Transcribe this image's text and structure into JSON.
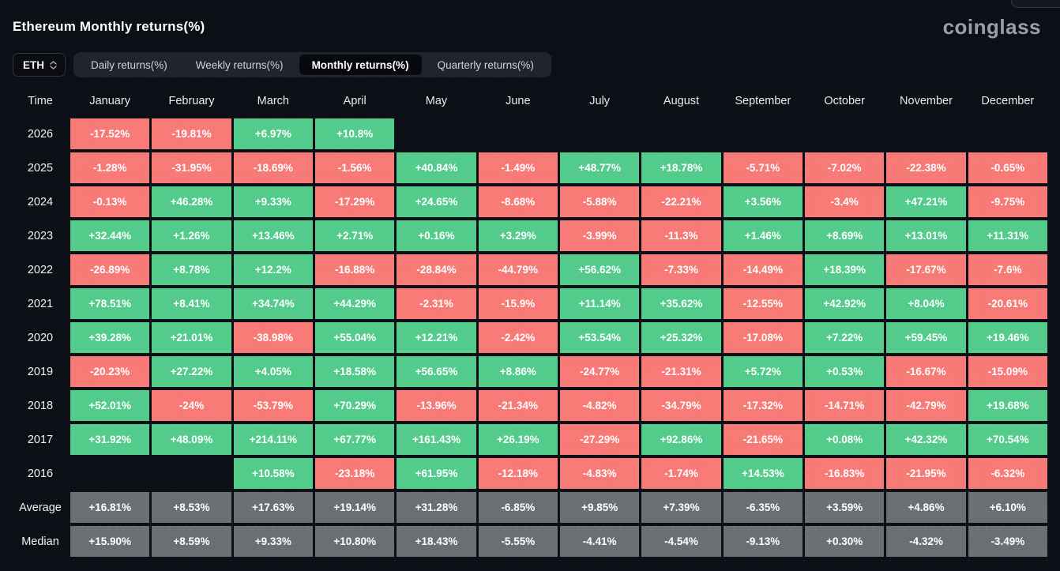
{
  "header": {
    "title": "Ethereum Monthly returns(%)",
    "logo_text": "coinglass"
  },
  "controls": {
    "symbol_select": {
      "value": "ETH",
      "icon": "chevron-up-down"
    },
    "tabs": [
      {
        "label": "Daily returns(%)",
        "active": false
      },
      {
        "label": "Weekly returns(%)",
        "active": false
      },
      {
        "label": "Monthly returns(%)",
        "active": true
      },
      {
        "label": "Quarterly returns(%)",
        "active": false
      }
    ]
  },
  "colors": {
    "positive": "#53cb8b",
    "negative": "#f87a77",
    "neutral": "#6b6f74",
    "background": "#0c0f15"
  },
  "chart_data": {
    "type": "heatmap",
    "title": "Ethereum Monthly returns(%)",
    "time_header": "Time",
    "columns": [
      "January",
      "February",
      "March",
      "April",
      "May",
      "June",
      "July",
      "August",
      "September",
      "October",
      "November",
      "December"
    ],
    "rows": [
      {
        "label": "2026",
        "type": "year",
        "values": [
          "-17.52%",
          "-19.81%",
          "+6.97%",
          "+10.8%",
          "",
          "",
          "",
          "",
          "",
          "",
          "",
          ""
        ]
      },
      {
        "label": "2025",
        "type": "year",
        "values": [
          "-1.28%",
          "-31.95%",
          "-18.69%",
          "-1.56%",
          "+40.84%",
          "-1.49%",
          "+48.77%",
          "+18.78%",
          "-5.71%",
          "-7.02%",
          "-22.38%",
          "-0.65%"
        ]
      },
      {
        "label": "2024",
        "type": "year",
        "values": [
          "-0.13%",
          "+46.28%",
          "+9.33%",
          "-17.29%",
          "+24.65%",
          "-8.68%",
          "-5.88%",
          "-22.21%",
          "+3.56%",
          "-3.4%",
          "+47.21%",
          "-9.75%"
        ]
      },
      {
        "label": "2023",
        "type": "year",
        "values": [
          "+32.44%",
          "+1.26%",
          "+13.46%",
          "+2.71%",
          "+0.16%",
          "+3.29%",
          "-3.99%",
          "-11.3%",
          "+1.46%",
          "+8.69%",
          "+13.01%",
          "+11.31%"
        ]
      },
      {
        "label": "2022",
        "type": "year",
        "values": [
          "-26.89%",
          "+8.78%",
          "+12.2%",
          "-16.88%",
          "-28.84%",
          "-44.79%",
          "+56.62%",
          "-7.33%",
          "-14.49%",
          "+18.39%",
          "-17.67%",
          "-7.6%"
        ]
      },
      {
        "label": "2021",
        "type": "year",
        "values": [
          "+78.51%",
          "+8.41%",
          "+34.74%",
          "+44.29%",
          "-2.31%",
          "-15.9%",
          "+11.14%",
          "+35.62%",
          "-12.55%",
          "+42.92%",
          "+8.04%",
          "-20.61%"
        ]
      },
      {
        "label": "2020",
        "type": "year",
        "values": [
          "+39.28%",
          "+21.01%",
          "-38.98%",
          "+55.04%",
          "+12.21%",
          "-2.42%",
          "+53.54%",
          "+25.32%",
          "-17.08%",
          "+7.22%",
          "+59.45%",
          "+19.46%"
        ]
      },
      {
        "label": "2019",
        "type": "year",
        "values": [
          "-20.23%",
          "+27.22%",
          "+4.05%",
          "+18.58%",
          "+56.65%",
          "+8.86%",
          "-24.77%",
          "-21.31%",
          "+5.72%",
          "+0.53%",
          "-16.67%",
          "-15.09%"
        ]
      },
      {
        "label": "2018",
        "type": "year",
        "values": [
          "+52.01%",
          "-24%",
          "-53.79%",
          "+70.29%",
          "-13.96%",
          "-21.34%",
          "-4.82%",
          "-34.79%",
          "-17.32%",
          "-14.71%",
          "-42.79%",
          "+19.68%"
        ]
      },
      {
        "label": "2017",
        "type": "year",
        "values": [
          "+31.92%",
          "+48.09%",
          "+214.11%",
          "+67.77%",
          "+161.43%",
          "+26.19%",
          "-27.29%",
          "+92.86%",
          "-21.65%",
          "+0.08%",
          "+42.32%",
          "+70.54%"
        ]
      },
      {
        "label": "2016",
        "type": "year",
        "values": [
          "",
          "",
          "+10.58%",
          "-23.18%",
          "+61.95%",
          "-12.18%",
          "-4.83%",
          "-1.74%",
          "+14.53%",
          "-16.83%",
          "-21.95%",
          "-6.32%"
        ]
      },
      {
        "label": "Average",
        "type": "summary",
        "values": [
          "+16.81%",
          "+8.53%",
          "+17.63%",
          "+19.14%",
          "+31.28%",
          "-6.85%",
          "+9.85%",
          "+7.39%",
          "-6.35%",
          "+3.59%",
          "+4.86%",
          "+6.10%"
        ]
      },
      {
        "label": "Median",
        "type": "summary",
        "values": [
          "+15.90%",
          "+8.59%",
          "+9.33%",
          "+10.80%",
          "+18.43%",
          "-5.55%",
          "-4.41%",
          "-4.54%",
          "-9.13%",
          "+0.30%",
          "-4.32%",
          "-3.49%"
        ]
      }
    ]
  }
}
